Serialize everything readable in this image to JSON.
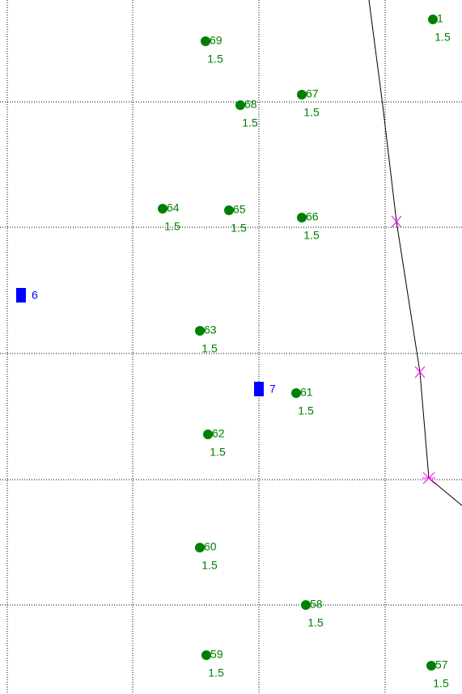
{
  "points": [
    {
      "label": "1",
      "value": "1.5"
    },
    {
      "label": "69",
      "value": "1.5"
    },
    {
      "label": "67",
      "value": "1.5"
    },
    {
      "label": "68",
      "value": "1.5"
    },
    {
      "label": "64",
      "value": "1.5"
    },
    {
      "label": "65",
      "value": "1.5"
    },
    {
      "label": "66",
      "value": "1.5"
    },
    {
      "label": "63",
      "value": "1.5"
    },
    {
      "label": "61",
      "value": "1.5"
    },
    {
      "label": "62",
      "value": "1.5"
    },
    {
      "label": "60",
      "value": "1.5"
    },
    {
      "label": "58",
      "value": "1.5"
    },
    {
      "label": "59",
      "value": "1.5"
    },
    {
      "label": "57",
      "value": "1.5"
    }
  ],
  "stations": [
    {
      "label": "6"
    },
    {
      "label": "7"
    }
  ]
}
